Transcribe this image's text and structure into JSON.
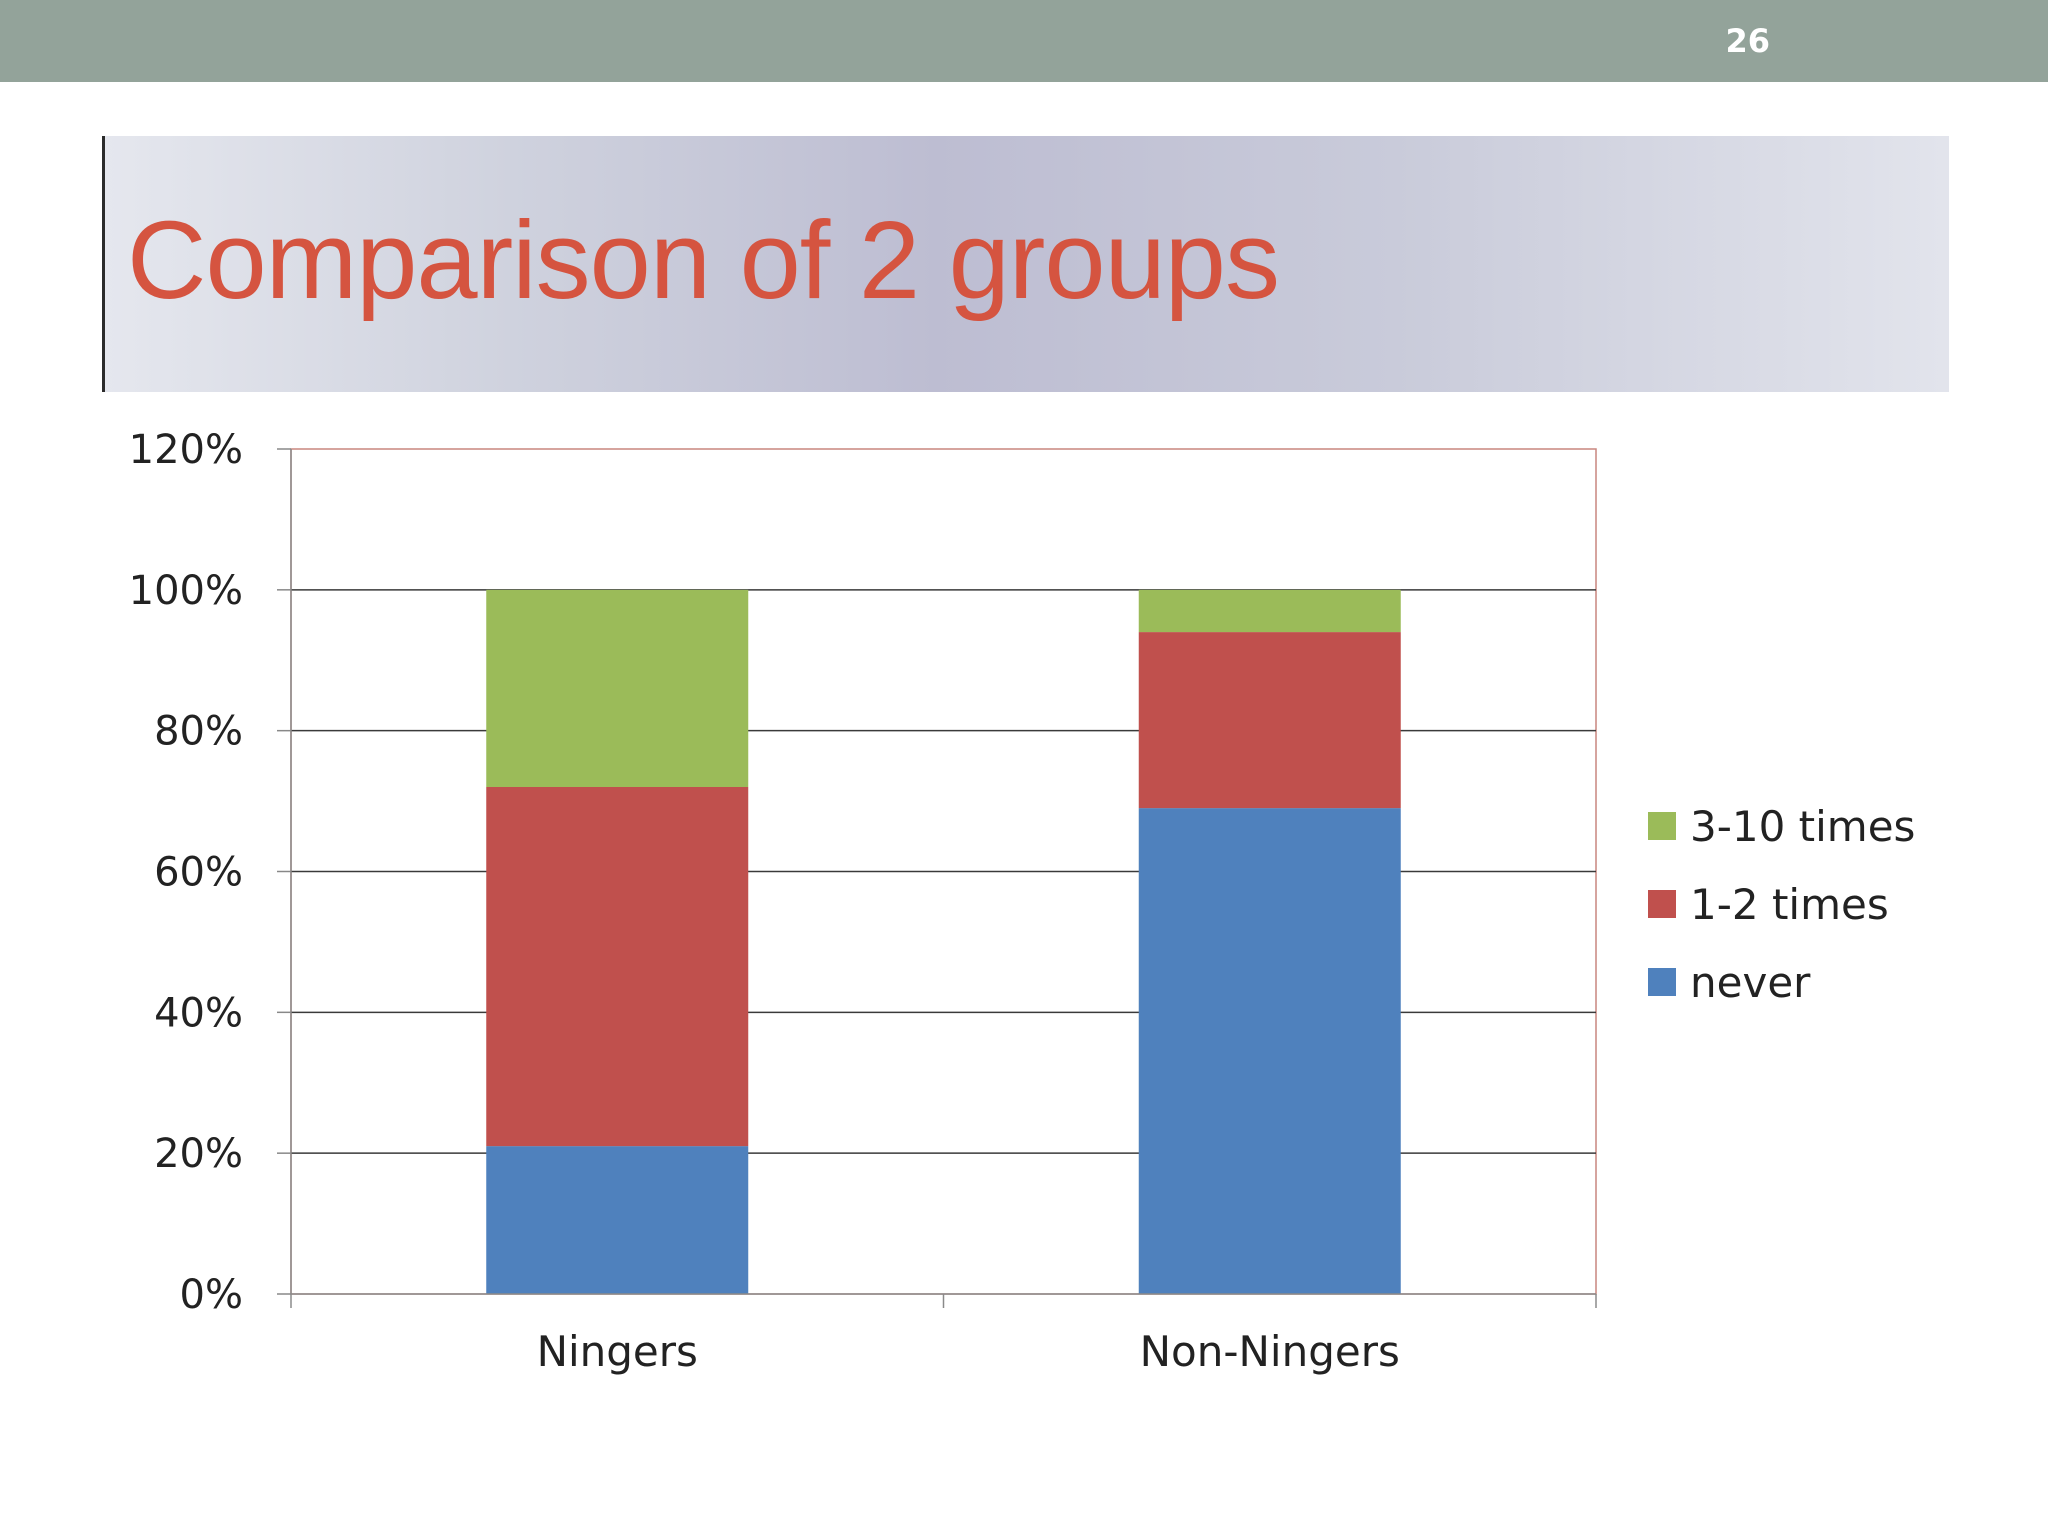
{
  "slide": {
    "number": "26",
    "title": "Comparison of 2 groups"
  },
  "chart_data": {
    "type": "bar",
    "stacked": true,
    "categories": [
      "Ningers",
      "Non-Ningers"
    ],
    "series": [
      {
        "name": "never",
        "values": [
          21,
          69
        ],
        "color": "#4f81bd"
      },
      {
        "name": "1-2 times",
        "values": [
          51,
          25
        ],
        "color": "#c0504d"
      },
      {
        "name": "3-10 times",
        "values": [
          28,
          6
        ],
        "color": "#9bbb59"
      }
    ],
    "ylim": [
      0,
      120
    ],
    "yticks": [
      "0%",
      "20%",
      "40%",
      "60%",
      "80%",
      "100%",
      "120%"
    ],
    "ytick_values": [
      0,
      20,
      40,
      60,
      80,
      100,
      120
    ],
    "grid": true,
    "legend_position": "right",
    "title": "",
    "xlabel": "",
    "ylabel": ""
  }
}
